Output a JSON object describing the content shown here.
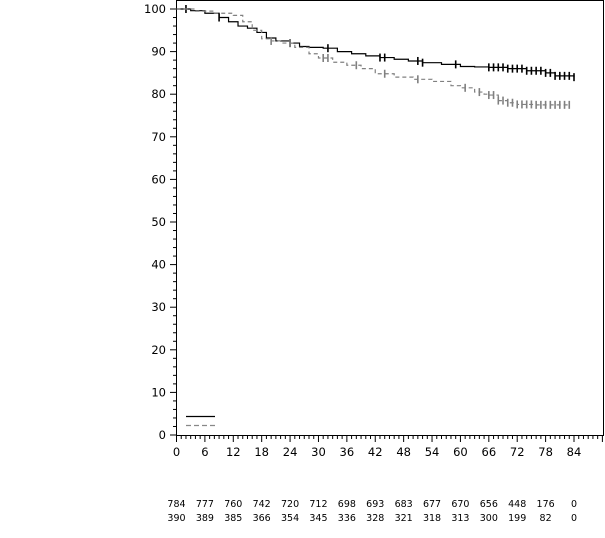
{
  "chart_data": {
    "type": "line",
    "title": "",
    "xlabel": "",
    "ylabel": "",
    "xlim": [
      0,
      90
    ],
    "ylim": [
      0,
      100
    ],
    "x_ticks": [
      "0",
      "6",
      "12",
      "18",
      "24",
      "30",
      "36",
      "42",
      "48",
      "54",
      "60",
      "66",
      "72",
      "78",
      "84"
    ],
    "y_ticks": [
      "0",
      "10",
      "20",
      "30",
      "40",
      "50",
      "60",
      "70",
      "80",
      "90",
      "100"
    ],
    "grid": false,
    "series": [
      {
        "line_style": "solid",
        "color": "#000000",
        "points": [
          [
            0,
            100
          ],
          [
            3,
            99.6
          ],
          [
            6,
            99
          ],
          [
            9,
            98
          ],
          [
            11,
            97
          ],
          [
            13,
            96
          ],
          [
            15,
            95.5
          ],
          [
            17,
            94.5
          ],
          [
            19,
            93.2
          ],
          [
            21,
            92.5
          ],
          [
            24,
            92
          ],
          [
            26,
            91.2
          ],
          [
            28,
            91
          ],
          [
            31,
            90.8
          ],
          [
            34,
            90
          ],
          [
            37,
            89.5
          ],
          [
            40,
            89
          ],
          [
            43,
            88.6
          ],
          [
            46,
            88.2
          ],
          [
            49,
            87.8
          ],
          [
            52,
            87.4
          ],
          [
            56,
            87
          ],
          [
            60,
            86.5
          ],
          [
            63,
            86.4
          ],
          [
            66,
            86.3
          ],
          [
            70,
            86
          ],
          [
            74,
            85.5
          ],
          [
            78,
            85
          ],
          [
            80,
            84.3
          ],
          [
            84,
            84
          ]
        ],
        "censor_x": [
          2,
          9,
          24,
          32,
          43,
          44,
          51,
          52,
          59,
          66,
          67,
          68,
          69,
          70,
          71,
          72,
          73,
          74,
          75,
          76,
          77,
          78,
          79,
          80,
          81,
          82,
          83,
          84
        ]
      },
      {
        "line_style": "dashed",
        "color": "#808080",
        "points": [
          [
            0,
            100
          ],
          [
            4,
            99.5
          ],
          [
            8,
            99
          ],
          [
            12,
            98.5
          ],
          [
            14,
            97
          ],
          [
            16,
            95
          ],
          [
            18,
            93
          ],
          [
            20,
            92.5
          ],
          [
            22,
            92
          ],
          [
            25,
            91
          ],
          [
            28,
            89.5
          ],
          [
            30,
            88.5
          ],
          [
            33,
            87.5
          ],
          [
            36,
            86.8
          ],
          [
            39,
            86
          ],
          [
            42,
            84.8
          ],
          [
            46,
            84
          ],
          [
            50,
            83.5
          ],
          [
            54,
            83
          ],
          [
            58,
            82
          ],
          [
            60,
            81.5
          ],
          [
            63,
            80.5
          ],
          [
            65,
            80
          ],
          [
            66,
            79.8
          ],
          [
            68,
            78.5
          ],
          [
            70,
            78
          ],
          [
            72,
            77.6
          ],
          [
            76,
            77.5
          ],
          [
            80,
            77.5
          ],
          [
            83,
            77.5
          ]
        ],
        "censor_x": [
          20,
          24,
          31,
          32,
          38,
          44,
          51,
          61,
          64,
          66,
          67,
          68,
          69,
          70,
          71,
          72,
          73,
          74,
          75,
          76,
          77,
          78,
          79,
          80,
          81,
          82,
          83
        ]
      }
    ],
    "risk_table": {
      "x": [
        "0",
        "6",
        "12",
        "18",
        "24",
        "30",
        "36",
        "42",
        "48",
        "54",
        "60",
        "66",
        "72",
        "78",
        "84"
      ],
      "rows": [
        [
          "784",
          "777",
          "760",
          "742",
          "720",
          "712",
          "698",
          "693",
          "683",
          "677",
          "670",
          "656",
          "448",
          "176",
          "0"
        ],
        [
          "390",
          "389",
          "385",
          "366",
          "354",
          "345",
          "336",
          "328",
          "321",
          "318",
          "313",
          "300",
          "199",
          "82",
          "0"
        ]
      ]
    }
  }
}
